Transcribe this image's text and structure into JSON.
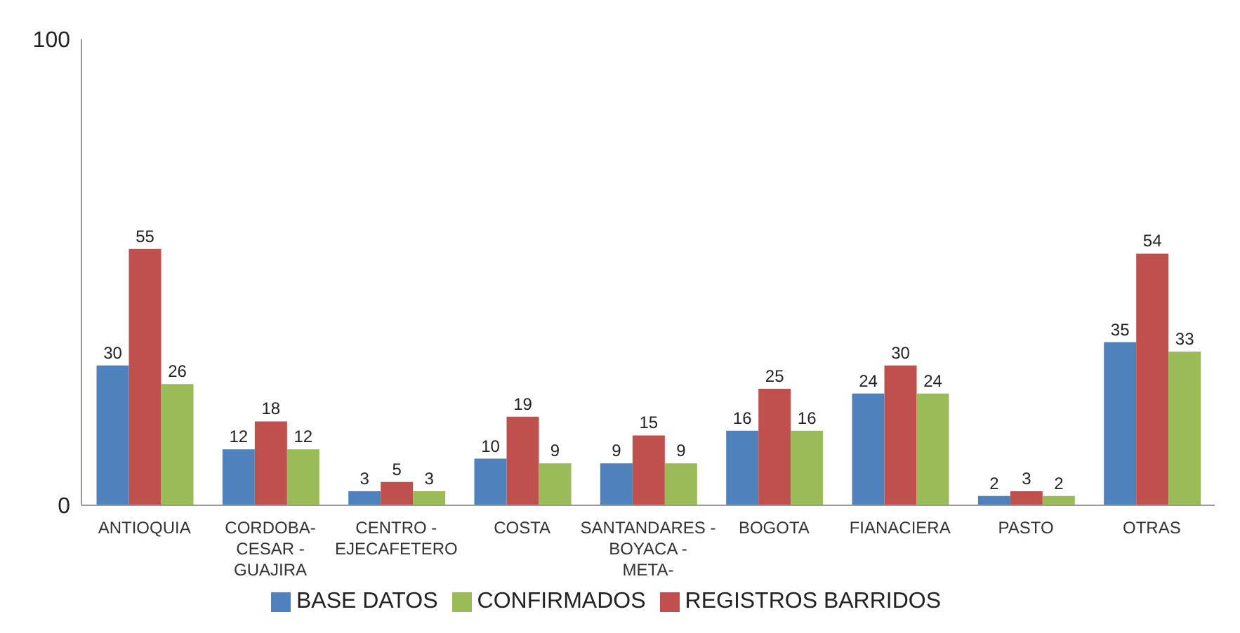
{
  "chart_data": {
    "type": "bar",
    "categories": [
      "ANTIOQUIA",
      "CORDOBA- CESAR - GUAJIRA",
      "CENTRO - EJECAFETERO",
      "COSTA",
      "SANTANDARES - BOYACA - META-",
      "BOGOTA",
      "FIANACIERA",
      "PASTO",
      "OTRAS"
    ],
    "series": [
      {
        "name": "BASE DATOS",
        "color": "#4f81bd",
        "values": [
          30,
          12,
          3,
          10,
          9,
          16,
          24,
          2,
          35
        ]
      },
      {
        "name": "REGISTROS BARRIDOS",
        "color": "#c0504d",
        "values": [
          55,
          18,
          5,
          19,
          15,
          25,
          30,
          3,
          54
        ]
      },
      {
        "name": "CONFIRMADOS",
        "color": "#9bbb59",
        "values": [
          26,
          12,
          3,
          9,
          9,
          16,
          24,
          2,
          33
        ]
      }
    ],
    "ylim": [
      0,
      100
    ],
    "yticks": [
      0,
      100
    ],
    "grid": false,
    "legend": "bottom",
    "data_labels": true
  }
}
